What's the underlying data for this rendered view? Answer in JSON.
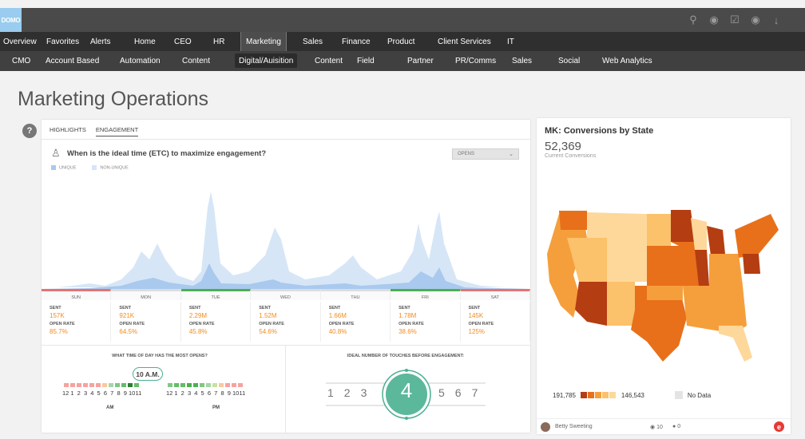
{
  "app": {
    "logo": "DOMO"
  },
  "top_icons": [
    "search-icon",
    "globe-icon",
    "check-icon",
    "chat-icon",
    "download-icon"
  ],
  "nav1": [
    "Overview",
    "Favorites",
    "Alerts",
    "Home",
    "CEO",
    "HR",
    "Marketing",
    "Sales",
    "Finance",
    "Product",
    "Client Services",
    "IT"
  ],
  "nav1_active": "Marketing",
  "nav2": [
    "CMO",
    "Account Based",
    "Automation",
    "Content",
    "Digital/Auisition",
    "Content",
    "Field",
    "Partner",
    "PR/Comms",
    "Sales",
    "Social",
    "Web Analytics"
  ],
  "nav2_active": "Digital/Auisition",
  "page": {
    "title": "Marketing Operations",
    "help": "?"
  },
  "engagement": {
    "tabs": [
      "HIGHLIGHTS",
      "ENGAGEMENT"
    ],
    "active_tab": "ENGAGEMENT",
    "question": "When is the ideal time (ETC) to maximize engagement?",
    "dropdown": "OPENS",
    "legend": [
      "UNIQUE",
      "NON-UNIQUE"
    ],
    "colors": {
      "unique": "#a9c9ee",
      "nonunique": "#d6e6f7",
      "accent": "#f28b1d",
      "good": "#4caf50",
      "bad": "#e57373"
    },
    "days": [
      {
        "name": "SUN",
        "sent": "157K",
        "open_rate": "85.7%",
        "status": "bad"
      },
      {
        "name": "MON",
        "sent": "921K",
        "open_rate": "64.5%",
        "status": "neutral"
      },
      {
        "name": "TUE",
        "sent": "2.29M",
        "open_rate": "45.8%",
        "status": "good"
      },
      {
        "name": "WED",
        "sent": "1.52M",
        "open_rate": "54.6%",
        "status": "neutral"
      },
      {
        "name": "THU",
        "sent": "1.66M",
        "open_rate": "40.8%",
        "status": "neutral"
      },
      {
        "name": "FRI",
        "sent": "1.78M",
        "open_rate": "38.6%",
        "status": "good"
      },
      {
        "name": "SAT",
        "sent": "145K",
        "open_rate": "125%",
        "status": "bad"
      }
    ],
    "sent_label": "SENT",
    "open_rate_label": "OPEN RATE"
  },
  "time_of_day": {
    "title": "WHAT TIME OF DAY HAS THE MOST OPENS?",
    "best": "10 A.M.",
    "hours": [
      "12",
      "1",
      "2",
      "3",
      "4",
      "5",
      "6",
      "7",
      "8",
      "9",
      "10",
      "11"
    ],
    "am_label": "AM",
    "pm_label": "PM"
  },
  "touches": {
    "title": "IDEAL NUMBER OF TOUCHES BEFORE ENGAGEMENT:",
    "left": [
      "1",
      "2",
      "3"
    ],
    "value": "4",
    "right": [
      "5",
      "6",
      "7"
    ]
  },
  "conversions": {
    "title": "MK: Conversions by State",
    "total": "52,369",
    "subtitle": "Current Conversions",
    "legend_max": "191,785",
    "legend_min": "146,543",
    "no_data": "No Data",
    "scale": [
      "#b53d12",
      "#e8701a",
      "#f59f3c",
      "#fbc16b",
      "#fdd89a"
    ],
    "author": "Betty Sweeting",
    "views": "10",
    "comments": "0"
  }
}
